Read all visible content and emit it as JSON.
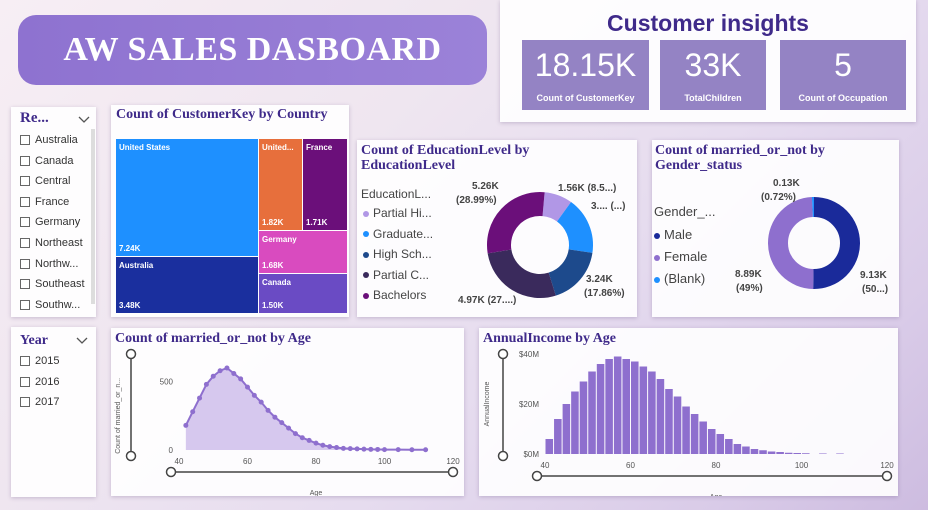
{
  "header": {
    "title": "AW SALES DASBOARD"
  },
  "kpi": {
    "title": "Customer insights",
    "cards": [
      {
        "value": "18.15K",
        "label": "Count of CustomerKey"
      },
      {
        "value": "33K",
        "label": "TotalChildren"
      },
      {
        "value": "5",
        "label": "Count of Occupation"
      }
    ]
  },
  "region_slicer": {
    "header": "Re...",
    "items": [
      "Australia",
      "Canada",
      "Central",
      "France",
      "Germany",
      "Northeast",
      "Northw...",
      "Southeast",
      "Southw..."
    ]
  },
  "year_slicer": {
    "header": "Year",
    "items": [
      "2015",
      "2016",
      "2017"
    ]
  },
  "treemap": {
    "title": "Count of CustomerKey by Country",
    "cells": [
      {
        "name": "United States",
        "count": "7.24K",
        "color": "#1e90ff"
      },
      {
        "name": "Australia",
        "count": "3.48K",
        "color": "#1a2f9e"
      },
      {
        "name": "United...",
        "count": "1.82K",
        "color": "#e76f3c"
      },
      {
        "name": "France",
        "count": "1.71K",
        "color": "#6b0f7a"
      },
      {
        "name": "Germany",
        "count": "1.68K",
        "color": "#d94bbf"
      },
      {
        "name": "Canada",
        "count": "1.50K",
        "color": "#6a4bc4"
      }
    ]
  },
  "edu": {
    "title": "Count of EducationLevel by EducationLevel",
    "legend_title": "EducationL...",
    "legend": [
      "Partial Hi...",
      "Graduate...",
      "High Sch...",
      "Partial C...",
      "Bachelors"
    ],
    "labels": {
      "bachelors_val": "5.26K",
      "bachelors_pct": "(28.99%)",
      "partialhi": "1.56K (8.5...)",
      "graduate": "3.... (...)",
      "highsch_val": "3.24K",
      "highsch_pct": "(17.86%)",
      "partialc": "4.97K (27....)"
    }
  },
  "married": {
    "title": "Count of married_or_not by Gender_status",
    "legend_title": "Gender_...",
    "legend": [
      "Male",
      "Female",
      "(Blank)"
    ],
    "labels": {
      "blank_val": "0.13K",
      "blank_pct": "(0.72%)",
      "female_val": "8.89K",
      "female_pct": "(49%)",
      "male_val": "9.13K",
      "male_pct": "(50...)"
    }
  },
  "age_chart": {
    "title": "Count of married_or_not by Age",
    "ylabel": "Count of married_or_n...",
    "xlabel": "Age",
    "y_ticks": [
      "0",
      "500"
    ],
    "x_ticks": [
      "40",
      "60",
      "80",
      "100",
      "120"
    ]
  },
  "income_chart": {
    "title": "AnnualIncome by Age",
    "ylabel": "AnnualIncome",
    "xlabel": "Age",
    "y_ticks": [
      "$0M",
      "$20M",
      "$40M"
    ],
    "x_ticks": [
      "40",
      "60",
      "80",
      "100",
      "120"
    ]
  },
  "colors": {
    "accent": "#8e72d0",
    "kpi": "#9483c4",
    "title": "#3f2a8a",
    "area": "#8e6fce"
  },
  "chart_data": [
    {
      "type": "bar",
      "title": "Count of CustomerKey by Country",
      "categories": [
        "United States",
        "Australia",
        "United...",
        "France",
        "Germany",
        "Canada"
      ],
      "values": [
        7240,
        3480,
        1820,
        1710,
        1680,
        1500
      ]
    },
    {
      "type": "pie",
      "title": "Count of EducationLevel by EducationLevel",
      "categories": [
        "Partial Hi...",
        "Graduate...",
        "High Sch...",
        "Partial C...",
        "Bachelors"
      ],
      "values": [
        1560,
        3170,
        3240,
        4970,
        5260
      ],
      "colors": [
        "#b197e6",
        "#1e90ff",
        "#1d4a8c",
        "#3a2a5c",
        "#6b0f7a"
      ]
    },
    {
      "type": "pie",
      "title": "Count of married_or_not by Gender_status",
      "categories": [
        "Male",
        "Female",
        "(Blank)"
      ],
      "values": [
        9130,
        8890,
        130
      ],
      "colors": [
        "#1a2a9a",
        "#8e6fce",
        "#1e90ff"
      ]
    },
    {
      "type": "area",
      "title": "Count of married_or_not by Age",
      "xlabel": "Age",
      "ylabel": "Count of married_or_n...",
      "xlim": [
        40,
        120
      ],
      "ylim": [
        0,
        600
      ],
      "x": [
        42,
        44,
        46,
        48,
        50,
        52,
        54,
        56,
        58,
        60,
        62,
        64,
        66,
        68,
        70,
        72,
        74,
        76,
        78,
        80,
        82,
        84,
        86,
        88,
        90,
        92,
        94,
        96,
        98,
        100,
        104,
        108,
        112
      ],
      "values": [
        180,
        280,
        380,
        480,
        540,
        580,
        600,
        560,
        520,
        460,
        400,
        350,
        290,
        240,
        200,
        160,
        120,
        90,
        70,
        50,
        35,
        25,
        18,
        12,
        10,
        8,
        6,
        5,
        4,
        3,
        3,
        2,
        2
      ]
    },
    {
      "type": "bar",
      "title": "AnnualIncome by Age",
      "xlabel": "Age",
      "ylabel": "AnnualIncome",
      "xlim": [
        40,
        120
      ],
      "ylim": [
        0,
        40
      ],
      "x": [
        41,
        43,
        45,
        47,
        49,
        51,
        53,
        55,
        57,
        59,
        61,
        63,
        65,
        67,
        69,
        71,
        73,
        75,
        77,
        79,
        81,
        83,
        85,
        87,
        89,
        91,
        93,
        95,
        97,
        99,
        101,
        105,
        109
      ],
      "values": [
        6,
        14,
        20,
        25,
        29,
        33,
        36,
        38,
        39,
        38,
        37,
        35,
        33,
        30,
        26,
        23,
        19,
        16,
        13,
        10,
        8,
        6,
        4,
        3,
        2,
        1.5,
        1,
        0.8,
        0.5,
        0.4,
        0.3,
        0.2,
        0.2
      ]
    }
  ]
}
